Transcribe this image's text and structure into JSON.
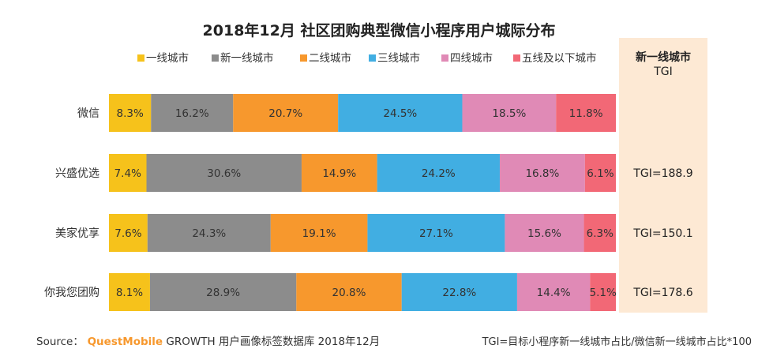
{
  "chart_data": {
    "type": "bar",
    "stacked": true,
    "percent": true,
    "orientation": "horizontal",
    "title": "2018年12月 社区团购典型微信小程序用户城际分布",
    "categories": [
      "微信",
      "兴盛优选",
      "美家优享",
      "你我您团购"
    ],
    "series": [
      {
        "name": "一线城市",
        "color": "#f6c21b",
        "values": [
          8.3,
          7.4,
          7.6,
          8.1
        ]
      },
      {
        "name": "新一线城市",
        "color": "#8c8c8c",
        "values": [
          16.2,
          30.6,
          24.3,
          28.9
        ]
      },
      {
        "name": "二线城市",
        "color": "#f7982d",
        "values": [
          20.7,
          14.9,
          19.1,
          20.8
        ]
      },
      {
        "name": "三线城市",
        "color": "#41aee2",
        "values": [
          24.5,
          24.2,
          27.1,
          22.8
        ]
      },
      {
        "name": "四线城市",
        "color": "#e08ab6",
        "values": [
          18.5,
          16.8,
          15.6,
          14.4
        ]
      },
      {
        "name": "五线及以下城市",
        "color": "#f26876",
        "values": [
          11.8,
          6.1,
          6.3,
          5.1
        ]
      }
    ],
    "tgi_header": "新一线城市\nTGI",
    "tgi_values": [
      "",
      "TGI=188.9",
      "TGI=150.1",
      "TGI=178.6"
    ],
    "tgi_panel_color": "#fde9d4",
    "legend_position": "top",
    "grid": false
  },
  "footer": {
    "source_label": "Source：",
    "source_brand": "QuestMobile",
    "source_text": "GROWTH 用户画像标签数据库 2018年12月",
    "note": "TGI=目标小程序新一线城市占比/微信新一线城市占比*100"
  },
  "colors": {
    "brand": "#f7982d",
    "text": "#333333"
  }
}
